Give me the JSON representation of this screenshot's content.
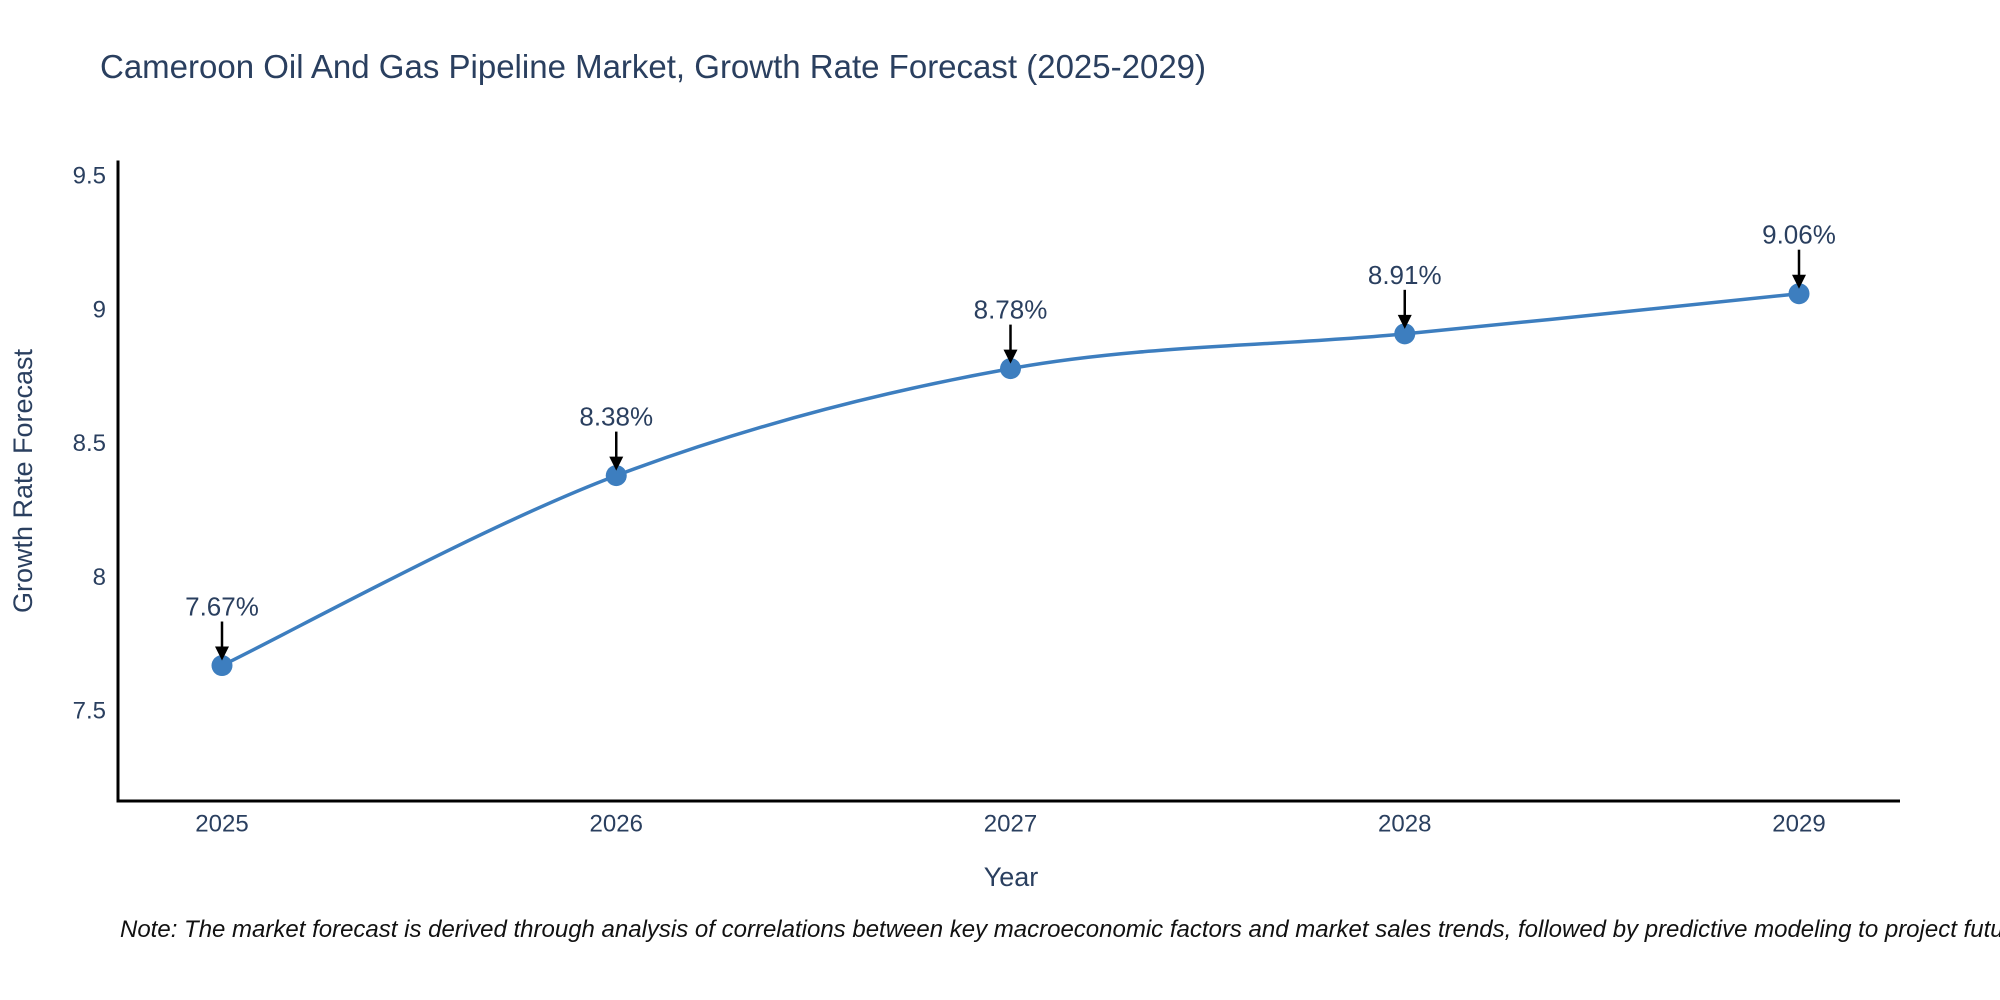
{
  "title": "Cameroon Oil And Gas Pipeline Market, Growth Rate Forecast (2025-2029)",
  "note": "Note: The market forecast is derived through analysis of correlations between key macroeconomic factors and market sales trends, followed by predictive modeling to project future sales",
  "colors": {
    "accent_line": "#3d7ebf",
    "marker": "#3d7ebf",
    "axis_line": "#000000",
    "text": "#2a3f5f",
    "arrow": "#000000",
    "background": "#ffffff"
  },
  "chart_data": {
    "type": "line",
    "title": "Cameroon Oil And Gas Pipeline Market, Growth Rate Forecast (2025-2029)",
    "xlabel": "Year",
    "ylabel": "Growth Rate Forecast",
    "categories": [
      "2025",
      "2026",
      "2027",
      "2028",
      "2029"
    ],
    "values": [
      7.67,
      8.38,
      8.78,
      8.91,
      9.06
    ],
    "point_labels": [
      "7.67%",
      "8.38%",
      "8.78%",
      "8.91%",
      "9.06%"
    ],
    "series": [
      {
        "name": "Growth Rate Forecast",
        "values": [
          7.67,
          8.38,
          8.78,
          8.91,
          9.06
        ]
      }
    ],
    "yticks": [
      7.5,
      8,
      8.5,
      9,
      9.5
    ],
    "ytick_labels": [
      "7.5",
      "8",
      "8.5",
      "9",
      "9.5"
    ],
    "ylim": [
      7.16,
      9.55
    ],
    "line_shape": "spline",
    "grid": false,
    "legend_position": "none",
    "annotation_style": "value label above point with downward black arrow"
  }
}
